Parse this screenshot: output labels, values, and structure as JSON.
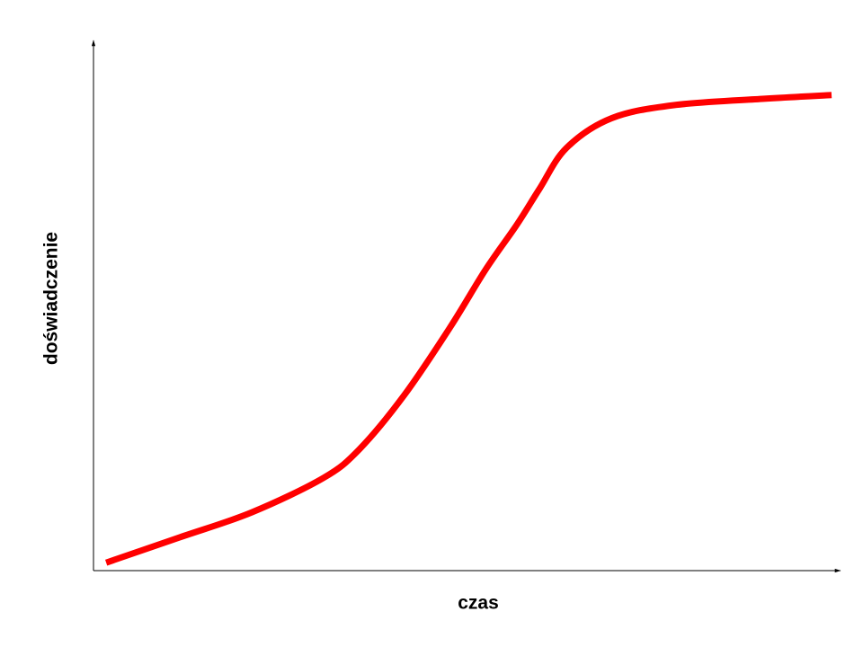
{
  "chart_data": {
    "type": "line",
    "x_label": "czas",
    "y_label": "doświadczenie",
    "x": [
      1.7,
      11.6,
      21.2,
      30.8,
      35.6,
      41.6,
      47.7,
      52.5,
      56.7,
      59.7,
      63.3,
      69.3,
      77.7,
      89.8,
      98.8
    ],
    "values": [
      1.5,
      6.3,
      11.0,
      17.5,
      22.9,
      33.1,
      45.8,
      56.8,
      65.3,
      72.0,
      79.7,
      85.3,
      87.8,
      89.0,
      89.7
    ],
    "color": "#ff0000",
    "xlim": [
      0,
      100
    ],
    "ylim": [
      0,
      100
    ]
  }
}
